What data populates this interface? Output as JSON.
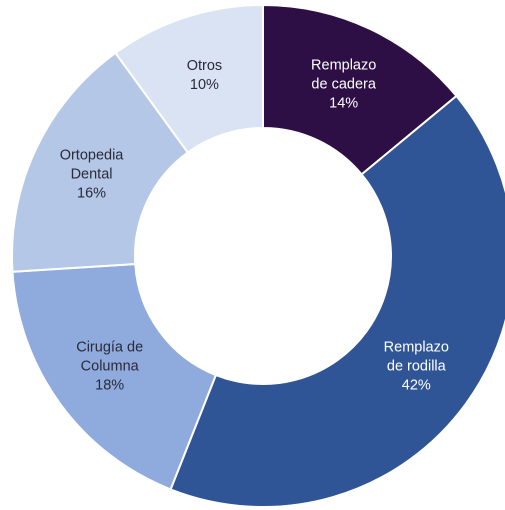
{
  "chart_data": {
    "type": "donut",
    "categories": [
      "Remplazo\nde cadera",
      "Remplazo\nde rodilla",
      "Cirugía de\nColumna",
      "Ortopedia\nDental",
      "Otros"
    ],
    "values": [
      14,
      42,
      18,
      16,
      10
    ],
    "value_labels": [
      "14%",
      "42%",
      "18%",
      "16%",
      "10%"
    ],
    "colors": [
      "#2e0f45",
      "#2f5597",
      "#8faadc",
      "#b4c7e7",
      "#dae3f3"
    ]
  }
}
